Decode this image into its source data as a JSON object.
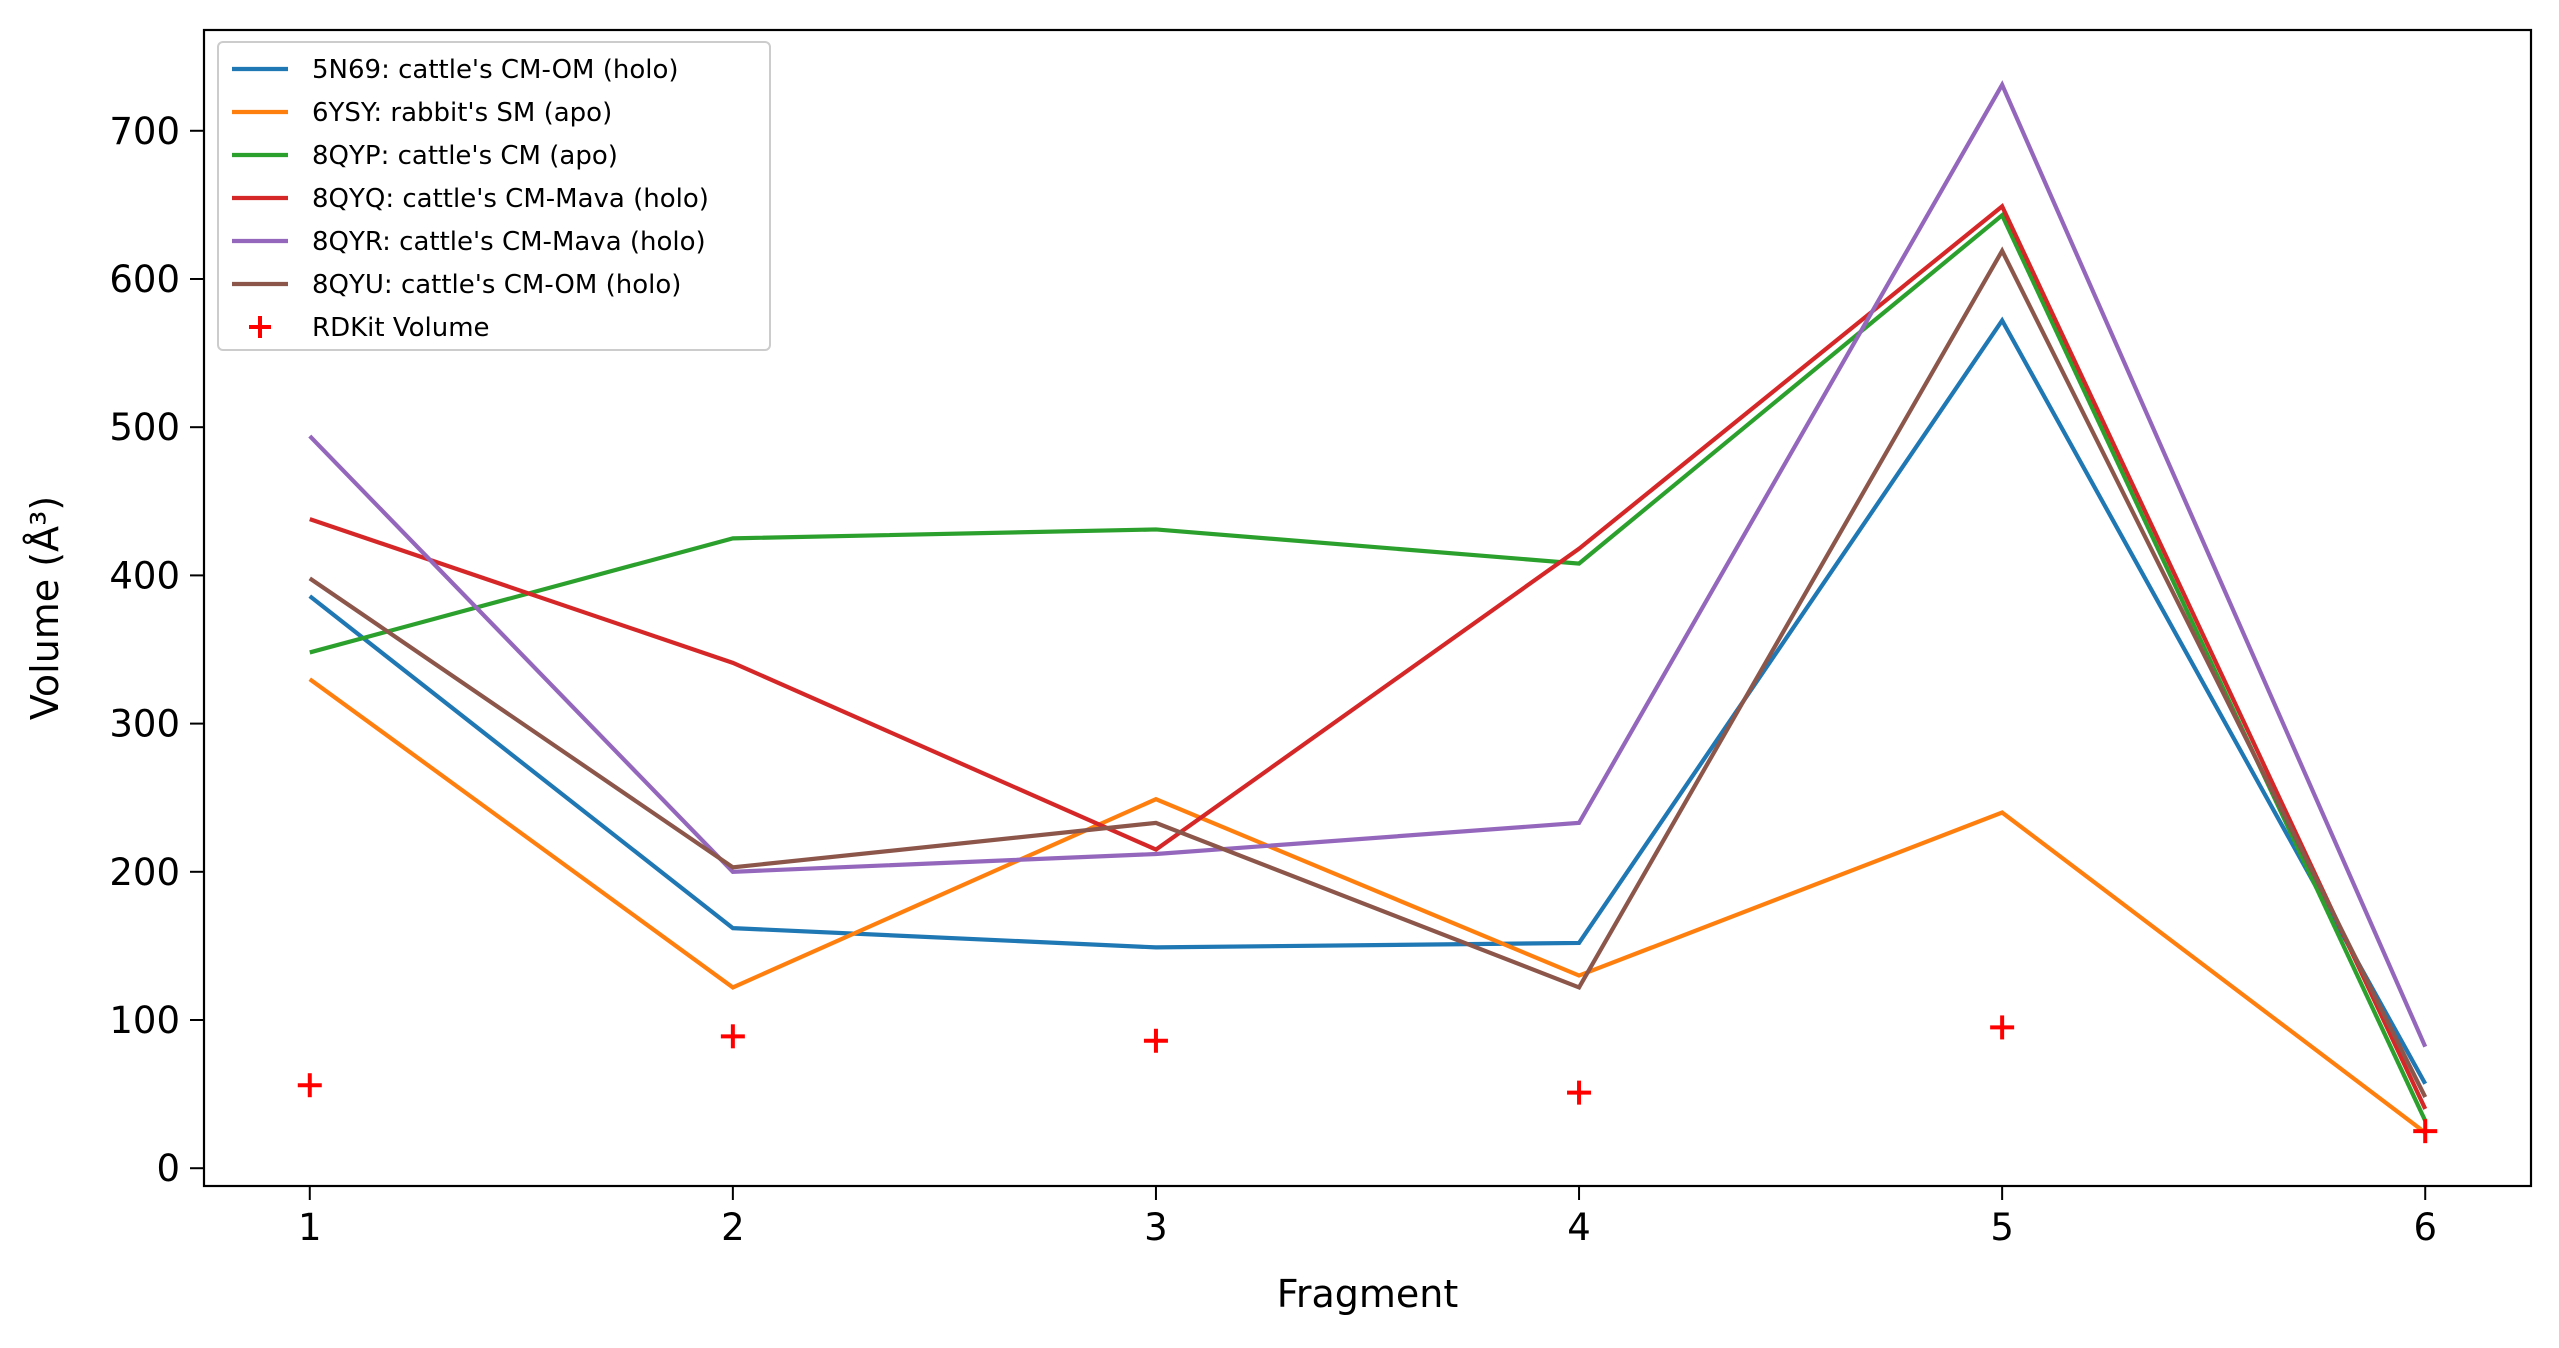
{
  "chart_data": {
    "type": "line",
    "title": "",
    "xlabel": "Fragment",
    "ylabel": "Volume (Å³)",
    "x": [
      1,
      2,
      3,
      4,
      5,
      6
    ],
    "xlim": [
      0.75,
      6.25
    ],
    "ylim": [
      -12,
      768
    ],
    "xticks": [
      1,
      2,
      3,
      4,
      5,
      6
    ],
    "yticks": [
      0,
      100,
      200,
      300,
      400,
      500,
      600,
      700
    ],
    "grid": false,
    "legend_position": "upper-left",
    "series": [
      {
        "name": "5N69: cattle's CM-OM (holo)",
        "color": "#1f77b4",
        "values": [
          386,
          162,
          149,
          152,
          572,
          57
        ]
      },
      {
        "name": "6YSY: rabbit's SM (apo)",
        "color": "#ff7f0e",
        "values": [
          330,
          122,
          249,
          130,
          240,
          24
        ]
      },
      {
        "name": "8QYP: cattle's CM (apo)",
        "color": "#2ca02c",
        "values": [
          348,
          425,
          431,
          408,
          643,
          32
        ]
      },
      {
        "name": "8QYQ: cattle's CM-Mava (holo)",
        "color": "#d62728",
        "values": [
          438,
          341,
          215,
          418,
          649,
          40
        ]
      },
      {
        "name": "8QYR: cattle's CM-Mava (holo)",
        "color": "#9467bd",
        "values": [
          494,
          200,
          212,
          233,
          731,
          82
        ]
      },
      {
        "name": "8QYU: cattle's CM-OM (holo)",
        "color": "#8c564b",
        "values": [
          398,
          203,
          233,
          122,
          619,
          48
        ]
      }
    ],
    "scatter": {
      "name": "RDKit Volume",
      "color": "#ff0000",
      "marker": "plus",
      "values": [
        56,
        89,
        86,
        51,
        95,
        25
      ]
    }
  }
}
